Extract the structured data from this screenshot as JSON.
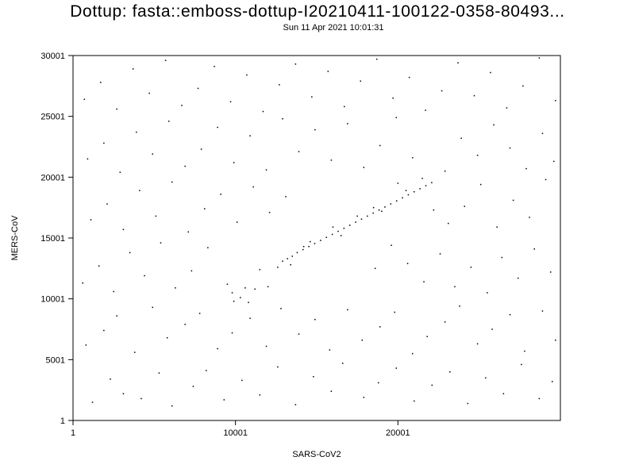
{
  "chart_data": {
    "type": "scatter",
    "title": "Dottup: fasta::emboss-dottup-I20210411-100122-0358-80493...",
    "subtitle": "Sun 11 Apr 2021 10:01:31",
    "xlabel": "SARS-CoV2",
    "ylabel": "MERS-CoV",
    "xlim": [
      1,
      30001
    ],
    "ylim": [
      1,
      30001
    ],
    "x_ticks": [
      1,
      10001,
      20001
    ],
    "x_tick_labels": [
      "1",
      "10001",
      "20001"
    ],
    "y_ticks": [
      1,
      5001,
      10001,
      15001,
      20001,
      25001,
      30001
    ],
    "y_tick_labels": [
      "1",
      "5001",
      "10001",
      "15001",
      "20001",
      "25001",
      "30001"
    ],
    "grid": false,
    "legend": "none",
    "point_color": "#000000",
    "series": [
      {
        "points": [
          [
            13800,
            13800
          ],
          [
            14160,
            14050
          ],
          [
            14520,
            14300
          ],
          [
            14880,
            14550
          ],
          [
            15240,
            14800
          ],
          [
            15600,
            15050
          ],
          [
            15960,
            15300
          ],
          [
            16320,
            15550
          ],
          [
            16680,
            15800
          ],
          [
            17040,
            16050
          ],
          [
            17400,
            16300
          ],
          [
            17760,
            16550
          ],
          [
            18120,
            16800
          ],
          [
            18480,
            17050
          ],
          [
            18840,
            17300
          ],
          [
            19200,
            17550
          ],
          [
            19560,
            17800
          ],
          [
            19920,
            18050
          ],
          [
            20280,
            18300
          ],
          [
            20640,
            18550
          ],
          [
            21000,
            18800
          ],
          [
            21360,
            19050
          ],
          [
            21720,
            19300
          ],
          [
            22080,
            19550
          ],
          [
            13500,
            13500
          ],
          [
            13200,
            13300
          ],
          [
            12900,
            13100
          ],
          [
            13400,
            12800
          ],
          [
            14200,
            14300
          ],
          [
            14600,
            14700
          ],
          [
            16000,
            15900
          ],
          [
            17500,
            16800
          ],
          [
            19000,
            17200
          ],
          [
            20500,
            18900
          ],
          [
            21500,
            19900
          ],
          [
            20000,
            19500
          ],
          [
            18500,
            17500
          ],
          [
            16500,
            15200
          ],
          [
            12000,
            11000
          ],
          [
            11500,
            12400
          ],
          [
            9800,
            10500
          ],
          [
            10300,
            10100
          ],
          [
            10800,
            9700
          ],
          [
            9500,
            11200
          ],
          [
            11200,
            10800
          ],
          [
            10600,
            10900
          ],
          [
            9900,
            9800
          ],
          [
            12600,
            12600
          ],
          [
            1200,
            1500
          ],
          [
            2300,
            3400
          ],
          [
            3100,
            2200
          ],
          [
            4200,
            1800
          ],
          [
            5300,
            3900
          ],
          [
            6100,
            1200
          ],
          [
            7400,
            2800
          ],
          [
            8200,
            4100
          ],
          [
            9300,
            1700
          ],
          [
            10400,
            3300
          ],
          [
            11500,
            2100
          ],
          [
            12600,
            4400
          ],
          [
            13700,
            1300
          ],
          [
            14800,
            3600
          ],
          [
            15900,
            2400
          ],
          [
            16600,
            4700
          ],
          [
            17900,
            1900
          ],
          [
            18800,
            3100
          ],
          [
            19900,
            4300
          ],
          [
            21000,
            1600
          ],
          [
            22100,
            2900
          ],
          [
            23200,
            4000
          ],
          [
            24300,
            1400
          ],
          [
            25400,
            3500
          ],
          [
            26500,
            2200
          ],
          [
            27600,
            4600
          ],
          [
            28700,
            1800
          ],
          [
            29500,
            3200
          ],
          [
            800,
            6200
          ],
          [
            1900,
            7400
          ],
          [
            2700,
            8600
          ],
          [
            3800,
            5600
          ],
          [
            4900,
            9300
          ],
          [
            5800,
            6800
          ],
          [
            6900,
            7900
          ],
          [
            7800,
            8800
          ],
          [
            8900,
            5900
          ],
          [
            9800,
            7200
          ],
          [
            10900,
            8400
          ],
          [
            11900,
            6100
          ],
          [
            12800,
            9200
          ],
          [
            13900,
            7100
          ],
          [
            14900,
            8300
          ],
          [
            15800,
            5800
          ],
          [
            16900,
            9100
          ],
          [
            17800,
            6600
          ],
          [
            18900,
            7700
          ],
          [
            19800,
            8900
          ],
          [
            20900,
            5500
          ],
          [
            21800,
            6900
          ],
          [
            22900,
            8100
          ],
          [
            23800,
            9400
          ],
          [
            24900,
            6300
          ],
          [
            25800,
            7500
          ],
          [
            26900,
            8700
          ],
          [
            27800,
            5700
          ],
          [
            28900,
            9000
          ],
          [
            29700,
            6600
          ],
          [
            600,
            11300
          ],
          [
            1600,
            12700
          ],
          [
            2500,
            10600
          ],
          [
            3500,
            13800
          ],
          [
            4400,
            11900
          ],
          [
            5400,
            14600
          ],
          [
            6300,
            10900
          ],
          [
            7300,
            12300
          ],
          [
            8300,
            14200
          ],
          [
            23500,
            11000
          ],
          [
            24500,
            12600
          ],
          [
            25500,
            10500
          ],
          [
            26400,
            13400
          ],
          [
            27400,
            11700
          ],
          [
            28400,
            14100
          ],
          [
            29400,
            12200
          ],
          [
            22600,
            13700
          ],
          [
            21600,
            11400
          ],
          [
            20600,
            12900
          ],
          [
            19600,
            14400
          ],
          [
            18600,
            12500
          ],
          [
            1100,
            16500
          ],
          [
            2100,
            17800
          ],
          [
            3100,
            15700
          ],
          [
            4100,
            18900
          ],
          [
            5100,
            16800
          ],
          [
            6100,
            19600
          ],
          [
            7100,
            15500
          ],
          [
            8100,
            17400
          ],
          [
            9100,
            18600
          ],
          [
            10100,
            16300
          ],
          [
            11100,
            19200
          ],
          [
            12100,
            17100
          ],
          [
            13100,
            18400
          ],
          [
            23100,
            16200
          ],
          [
            24100,
            17600
          ],
          [
            25100,
            19400
          ],
          [
            26100,
            15900
          ],
          [
            27100,
            18100
          ],
          [
            28100,
            16700
          ],
          [
            29100,
            19800
          ],
          [
            22200,
            17300
          ],
          [
            900,
            21500
          ],
          [
            1900,
            22800
          ],
          [
            2900,
            20400
          ],
          [
            3900,
            23700
          ],
          [
            4900,
            21900
          ],
          [
            5900,
            24600
          ],
          [
            6900,
            20900
          ],
          [
            7900,
            22300
          ],
          [
            8900,
            24100
          ],
          [
            9900,
            21200
          ],
          [
            10900,
            23400
          ],
          [
            11900,
            20600
          ],
          [
            12900,
            24800
          ],
          [
            13900,
            22100
          ],
          [
            14900,
            23900
          ],
          [
            15900,
            21400
          ],
          [
            16900,
            24400
          ],
          [
            17900,
            20800
          ],
          [
            18900,
            22600
          ],
          [
            19900,
            24900
          ],
          [
            20900,
            21600
          ],
          [
            22900,
            20500
          ],
          [
            23900,
            23200
          ],
          [
            24900,
            21800
          ],
          [
            25900,
            24300
          ],
          [
            26900,
            22400
          ],
          [
            27900,
            20700
          ],
          [
            28900,
            23600
          ],
          [
            29600,
            21300
          ],
          [
            700,
            26400
          ],
          [
            1700,
            27800
          ],
          [
            2700,
            25600
          ],
          [
            3700,
            28900
          ],
          [
            4700,
            26900
          ],
          [
            5700,
            29600
          ],
          [
            6700,
            25900
          ],
          [
            7700,
            27300
          ],
          [
            8700,
            29100
          ],
          [
            9700,
            26200
          ],
          [
            10700,
            28400
          ],
          [
            11700,
            25400
          ],
          [
            12700,
            27600
          ],
          [
            13700,
            29300
          ],
          [
            14700,
            26600
          ],
          [
            15700,
            28700
          ],
          [
            16700,
            25800
          ],
          [
            17700,
            27900
          ],
          [
            18700,
            29700
          ],
          [
            19700,
            26500
          ],
          [
            20700,
            28200
          ],
          [
            21700,
            25500
          ],
          [
            22700,
            27100
          ],
          [
            23700,
            29400
          ],
          [
            24700,
            26700
          ],
          [
            25700,
            28600
          ],
          [
            26700,
            25700
          ],
          [
            27700,
            27500
          ],
          [
            28700,
            29800
          ],
          [
            29700,
            26300
          ]
        ]
      }
    ]
  }
}
